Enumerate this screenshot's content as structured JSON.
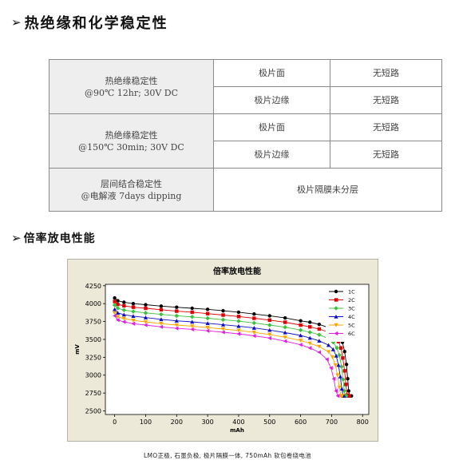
{
  "section1": {
    "arrow": "➢",
    "title": "热绝缘和化学稳定性"
  },
  "table": {
    "rows": [
      {
        "label_line1": "热绝缘稳定性",
        "label_line2": "@90℃ 12hr;  30V DC",
        "sub": [
          {
            "item": "极片面",
            "result": "无短路"
          },
          {
            "item": "极片边缘",
            "result": "无短路"
          }
        ]
      },
      {
        "label_line1": "热绝缘稳定性",
        "label_line2": "@150℃ 30min; 30V DC",
        "sub": [
          {
            "item": "极片面",
            "result": "无短路"
          },
          {
            "item": "极片边缘",
            "result": "无短路"
          }
        ]
      },
      {
        "label_line1": "层间结合稳定性",
        "label_line2": "@电解液 7days dipping",
        "merged": "极片隔膜未分层"
      }
    ]
  },
  "section2": {
    "arrow": "➢",
    "title": "倍率放电性能"
  },
  "chart_data": {
    "type": "line",
    "title": "倍率放电性能",
    "xlabel": "mAh",
    "ylabel": "mV",
    "xlim": [
      -30,
      820
    ],
    "ylim": [
      2450,
      4270
    ],
    "xticks": [
      0,
      100,
      200,
      300,
      400,
      500,
      600,
      700,
      800
    ],
    "yticks": [
      2500,
      2750,
      3000,
      3250,
      3500,
      3750,
      4000,
      4250
    ],
    "legend_position": "top-right",
    "series": [
      {
        "name": "1C",
        "color": "#000000",
        "marker": "circle",
        "x": [
          0,
          10,
          30,
          60,
          100,
          150,
          200,
          250,
          300,
          350,
          400,
          450,
          500,
          550,
          600,
          630,
          660,
          690,
          710,
          725,
          735,
          742,
          748,
          752,
          755,
          758,
          760,
          762,
          764
        ],
        "y": [
          4080,
          4040,
          4020,
          4000,
          3985,
          3965,
          3950,
          3935,
          3920,
          3900,
          3880,
          3855,
          3830,
          3800,
          3760,
          3740,
          3710,
          3665,
          3610,
          3550,
          3460,
          3330,
          3150,
          2950,
          2780,
          2710,
          2710,
          2710,
          2710
        ]
      },
      {
        "name": "2C",
        "color": "#e00000",
        "marker": "square",
        "x": [
          0,
          10,
          30,
          60,
          100,
          150,
          200,
          250,
          300,
          350,
          400,
          450,
          500,
          550,
          600,
          630,
          660,
          690,
          710,
          722,
          730,
          736,
          742,
          746,
          750,
          753,
          755,
          757
        ],
        "y": [
          4030,
          3990,
          3970,
          3950,
          3935,
          3915,
          3895,
          3880,
          3860,
          3840,
          3820,
          3795,
          3770,
          3740,
          3700,
          3675,
          3645,
          3600,
          3540,
          3470,
          3380,
          3240,
          3060,
          2870,
          2720,
          2710,
          2710,
          2710
        ]
      },
      {
        "name": "3C",
        "color": "#40c040",
        "marker": "diamond",
        "x": [
          0,
          10,
          30,
          60,
          100,
          150,
          200,
          250,
          300,
          350,
          400,
          450,
          500,
          550,
          600,
          630,
          660,
          690,
          705,
          717,
          725,
          732,
          737,
          741,
          744,
          747
        ],
        "y": [
          3980,
          3935,
          3910,
          3890,
          3870,
          3850,
          3830,
          3815,
          3795,
          3775,
          3755,
          3730,
          3700,
          3670,
          3630,
          3600,
          3565,
          3510,
          3460,
          3380,
          3280,
          3120,
          2940,
          2780,
          2710,
          2710
        ]
      },
      {
        "name": "4C",
        "color": "#1010c0",
        "marker": "triangle",
        "x": [
          0,
          10,
          30,
          60,
          100,
          150,
          200,
          250,
          300,
          350,
          400,
          450,
          500,
          550,
          600,
          630,
          660,
          690,
          705,
          715,
          722,
          728,
          733,
          737,
          740
        ],
        "y": [
          3920,
          3870,
          3845,
          3825,
          3805,
          3780,
          3760,
          3745,
          3725,
          3705,
          3685,
          3660,
          3630,
          3595,
          3555,
          3520,
          3480,
          3420,
          3360,
          3270,
          3140,
          2980,
          2810,
          2710,
          2710
        ]
      },
      {
        "name": "5C",
        "color": "#ffa500",
        "marker": "triangle-down",
        "x": [
          0,
          10,
          30,
          60,
          100,
          150,
          200,
          250,
          300,
          350,
          400,
          450,
          500,
          550,
          600,
          630,
          660,
          690,
          703,
          712,
          719,
          725,
          730,
          734
        ],
        "y": [
          3870,
          3815,
          3790,
          3765,
          3745,
          3720,
          3700,
          3685,
          3665,
          3645,
          3625,
          3598,
          3568,
          3530,
          3485,
          3445,
          3400,
          3325,
          3250,
          3140,
          3000,
          2830,
          2710,
          2710
        ]
      },
      {
        "name": "6C",
        "color": "#e020e0",
        "marker": "triangle-left",
        "x": [
          0,
          10,
          30,
          60,
          100,
          150,
          200,
          250,
          300,
          350,
          400,
          450,
          500,
          550,
          600,
          630,
          660,
          685,
          698,
          707,
          714,
          720
        ],
        "y": [
          3830,
          3770,
          3745,
          3720,
          3700,
          3675,
          3655,
          3640,
          3620,
          3600,
          3578,
          3550,
          3518,
          3475,
          3425,
          3380,
          3320,
          3220,
          3100,
          2950,
          2780,
          2710
        ]
      }
    ]
  },
  "caption": "LMO正极, 石墨负极, 极片隔膜一体, 750mAh 软包卷绕电池"
}
